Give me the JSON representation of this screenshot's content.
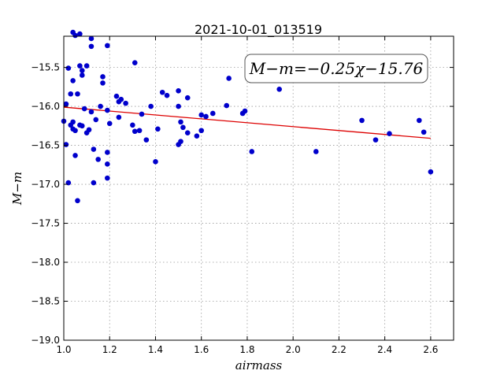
{
  "chart_data": {
    "type": "scatter",
    "title": "2021-10-01_013519",
    "xlabel": "airmass",
    "ylabel": "M−m",
    "xlim": [
      1.0,
      2.7
    ],
    "ylim": [
      -19.0,
      -15.1
    ],
    "y_inverted_display": true,
    "grid": true,
    "x_ticks": [
      "1.0",
      "1.2",
      "1.4",
      "1.6",
      "1.8",
      "2.0",
      "2.2",
      "2.4",
      "2.6"
    ],
    "y_ticks": [
      "−15.5",
      "−16.0",
      "−16.5",
      "−17.0",
      "−17.5",
      "−18.0",
      "−18.5",
      "−19.0"
    ],
    "annotation": "M−m=−0.25χ−15.76",
    "point_color": "#0000cc",
    "fit_color": "#dd0000",
    "fit": {
      "slope": -0.25,
      "intercept": -15.76,
      "x_range": [
        1.0,
        2.6
      ]
    },
    "points": [
      {
        "x": 1.01,
        "y": -15.97
      },
      {
        "x": 1.02,
        "y": -16.98
      },
      {
        "x": 1.03,
        "y": -15.84
      },
      {
        "x": 1.04,
        "y": -15.05
      },
      {
        "x": 1.05,
        "y": -15.09
      },
      {
        "x": 1.06,
        "y": -15.84
      },
      {
        "x": 1.07,
        "y": -15.07
      },
      {
        "x": 1.07,
        "y": -15.48
      },
      {
        "x": 1.08,
        "y": -15.54
      },
      {
        "x": 1.08,
        "y": -15.6
      },
      {
        "x": 1.1,
        "y": -15.48
      },
      {
        "x": 1.12,
        "y": -15.13
      },
      {
        "x": 1.12,
        "y": -15.23
      },
      {
        "x": 1.02,
        "y": -15.51
      },
      {
        "x": 1.04,
        "y": -15.67
      },
      {
        "x": 1.0,
        "y": -16.19
      },
      {
        "x": 1.01,
        "y": -16.49
      },
      {
        "x": 1.03,
        "y": -16.24
      },
      {
        "x": 1.04,
        "y": -16.2
      },
      {
        "x": 1.04,
        "y": -16.29
      },
      {
        "x": 1.05,
        "y": -16.31
      },
      {
        "x": 1.05,
        "y": -16.63
      },
      {
        "x": 1.06,
        "y": -17.21
      },
      {
        "x": 1.07,
        "y": -16.24
      },
      {
        "x": 1.08,
        "y": -16.25
      },
      {
        "x": 1.09,
        "y": -16.03
      },
      {
        "x": 1.1,
        "y": -16.34
      },
      {
        "x": 1.11,
        "y": -16.3
      },
      {
        "x": 1.12,
        "y": -16.07
      },
      {
        "x": 1.13,
        "y": -16.55
      },
      {
        "x": 1.13,
        "y": -16.98
      },
      {
        "x": 1.15,
        "y": -16.68
      },
      {
        "x": 1.16,
        "y": -16.0
      },
      {
        "x": 1.14,
        "y": -16.17
      },
      {
        "x": 1.17,
        "y": -15.62
      },
      {
        "x": 1.17,
        "y": -15.7
      },
      {
        "x": 1.19,
        "y": -15.22
      },
      {
        "x": 1.19,
        "y": -16.05
      },
      {
        "x": 1.2,
        "y": -16.22
      },
      {
        "x": 1.19,
        "y": -16.59
      },
      {
        "x": 1.19,
        "y": -16.74
      },
      {
        "x": 1.19,
        "y": -16.92
      },
      {
        "x": 1.23,
        "y": -15.87
      },
      {
        "x": 1.24,
        "y": -15.94
      },
      {
        "x": 1.24,
        "y": -16.14
      },
      {
        "x": 1.25,
        "y": -15.91
      },
      {
        "x": 1.27,
        "y": -15.96
      },
      {
        "x": 1.3,
        "y": -16.24
      },
      {
        "x": 1.31,
        "y": -16.32
      },
      {
        "x": 1.31,
        "y": -15.44
      },
      {
        "x": 1.33,
        "y": -16.31
      },
      {
        "x": 1.34,
        "y": -16.1
      },
      {
        "x": 1.36,
        "y": -16.43
      },
      {
        "x": 1.38,
        "y": -16.0
      },
      {
        "x": 1.4,
        "y": -16.71
      },
      {
        "x": 1.41,
        "y": -16.29
      },
      {
        "x": 1.43,
        "y": -15.82
      },
      {
        "x": 1.45,
        "y": -15.86
      },
      {
        "x": 1.5,
        "y": -15.8
      },
      {
        "x": 1.5,
        "y": -16.0
      },
      {
        "x": 1.5,
        "y": -16.49
      },
      {
        "x": 1.51,
        "y": -16.45
      },
      {
        "x": 1.51,
        "y": -16.2
      },
      {
        "x": 1.52,
        "y": -16.27
      },
      {
        "x": 1.54,
        "y": -15.89
      },
      {
        "x": 1.54,
        "y": -16.34
      },
      {
        "x": 1.58,
        "y": -16.38
      },
      {
        "x": 1.6,
        "y": -16.11
      },
      {
        "x": 1.6,
        "y": -16.31
      },
      {
        "x": 1.62,
        "y": -16.13
      },
      {
        "x": 1.65,
        "y": -16.09
      },
      {
        "x": 1.71,
        "y": -15.99
      },
      {
        "x": 1.72,
        "y": -15.64
      },
      {
        "x": 1.78,
        "y": -16.09
      },
      {
        "x": 1.79,
        "y": -16.06
      },
      {
        "x": 1.82,
        "y": -16.58
      },
      {
        "x": 1.94,
        "y": -15.78
      },
      {
        "x": 2.1,
        "y": -16.58
      },
      {
        "x": 2.3,
        "y": -16.18
      },
      {
        "x": 2.36,
        "y": -16.43
      },
      {
        "x": 2.42,
        "y": -16.35
      },
      {
        "x": 2.55,
        "y": -16.18
      },
      {
        "x": 2.57,
        "y": -16.33
      },
      {
        "x": 2.6,
        "y": -16.84
      }
    ]
  }
}
